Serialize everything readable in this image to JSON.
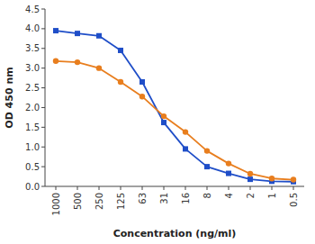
{
  "chart_data": {
    "type": "line",
    "x_label": "Concentration (ng/ml)",
    "y_label": "OD 450 nm",
    "categories": [
      "1000",
      "500",
      "250",
      "125",
      "63",
      "31",
      "16",
      "8",
      "4",
      "2",
      "1",
      "0.5"
    ],
    "series": [
      {
        "color": "#1f4ec8",
        "marker": "square",
        "values": [
          3.95,
          3.88,
          3.82,
          3.45,
          2.65,
          1.62,
          0.95,
          0.5,
          0.33,
          0.18,
          0.13,
          0.12
        ]
      },
      {
        "color": "#e87e1e",
        "marker": "circle",
        "values": [
          3.18,
          3.15,
          3.0,
          2.65,
          2.28,
          1.78,
          1.38,
          0.9,
          0.58,
          0.32,
          0.2,
          0.17
        ]
      }
    ],
    "ylim": [
      0.0,
      4.5
    ],
    "yticks": [
      {
        "value": 0.0,
        "label": "0.0"
      },
      0.5,
      {
        "value": 1.0,
        "label": "1.0"
      },
      1.5,
      {
        "value": 2.0,
        "label": "2.0"
      },
      2.5,
      {
        "value": 3.0,
        "label": "3.0"
      },
      3.5,
      {
        "value": 4.0,
        "label": "4.0"
      },
      4.5
    ],
    "grid": false
  }
}
